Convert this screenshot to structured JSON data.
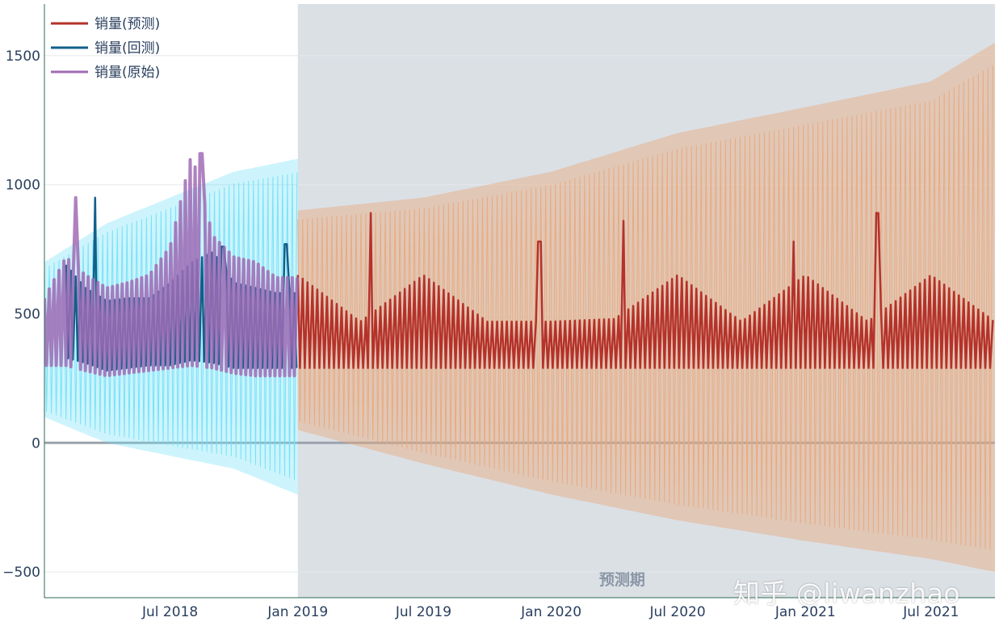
{
  "chart_data": {
    "type": "line",
    "title": "",
    "xlabel": "",
    "ylabel": "",
    "x_range": [
      "2018-01-01",
      "2021-10-01"
    ],
    "ylim": [
      -600,
      1700
    ],
    "y_ticks": [
      1500,
      1000,
      500,
      0,
      -500
    ],
    "y_tick_labels": [
      "1500",
      "1000",
      "500",
      "0",
      "−500"
    ],
    "x_ticks": [
      "2018-07-01",
      "2019-01-01",
      "2019-07-01",
      "2020-01-01",
      "2020-07-01",
      "2021-01-01",
      "2021-07-01"
    ],
    "x_tick_labels": [
      "Jul 2018",
      "Jan 2019",
      "Jul 2019",
      "Jan 2020",
      "Jul 2020",
      "Jan 2021",
      "Jul 2021"
    ],
    "grid": true,
    "legend_position": "top-left",
    "forecast_region": {
      "start": "2019-01-01",
      "end": "2021-10-01",
      "label": "预测期"
    },
    "series": [
      {
        "name": "销量(预测)",
        "color": "#b5322a",
        "x": [
          "2019-01",
          "2019-04",
          "2019-07",
          "2019-10",
          "2020-01",
          "2020-04",
          "2020-07",
          "2020-10",
          "2021-01",
          "2021-04",
          "2021-07",
          "2021-10"
        ],
        "y_low": [
          290,
          290,
          290,
          290,
          290,
          290,
          290,
          290,
          290,
          290,
          290,
          290
        ],
        "y_high": [
          650,
          470,
          650,
          470,
          470,
          480,
          650,
          470,
          650,
          470,
          650,
          470
        ],
        "spikes": [
          {
            "x": "2019-04",
            "y": 890
          },
          {
            "x": "2019-12",
            "y": 780
          },
          {
            "x": "2020-04",
            "y": 860
          },
          {
            "x": "2020-12",
            "y": 780
          },
          {
            "x": "2021-04",
            "y": 890
          }
        ]
      },
      {
        "name": "销量(回测)",
        "color": "#125f8a",
        "x": [
          "2018-02",
          "2018-03",
          "2018-04",
          "2018-05",
          "2018-06",
          "2018-07",
          "2018-08",
          "2018-09",
          "2018-10",
          "2018-11",
          "2018-12"
        ],
        "y_low": [
          330,
          310,
          280,
          290,
          300,
          300,
          320,
          310,
          290,
          290,
          290
        ],
        "y_high": [
          690,
          600,
          550,
          560,
          560,
          620,
          700,
          740,
          620,
          600,
          580
        ],
        "spikes": [
          {
            "x": "2018-03",
            "y": 950
          },
          {
            "x": "2018-09",
            "y": 760
          },
          {
            "x": "2018-12",
            "y": 770
          }
        ]
      },
      {
        "name": "销量(原始)",
        "color": "#a06bb5",
        "x": [
          "2018-01",
          "2018-02",
          "2018-03",
          "2018-04",
          "2018-05",
          "2018-06",
          "2018-07",
          "2018-08",
          "2018-09",
          "2018-10",
          "2018-11",
          "2018-12"
        ],
        "y_low": [
          300,
          300,
          280,
          260,
          270,
          280,
          290,
          300,
          290,
          270,
          260,
          260
        ],
        "y_high": [
          560,
          720,
          650,
          600,
          620,
          650,
          760,
          1120,
          800,
          720,
          700,
          640
        ],
        "spikes": [
          {
            "x": "2018-02",
            "y": 950
          },
          {
            "x": "2018-08",
            "y": 1120
          }
        ]
      }
    ],
    "uncertainty_bands": [
      {
        "color": "#6fe0f7",
        "x": [
          "2018-01",
          "2018-04",
          "2018-07",
          "2018-10",
          "2019-01"
        ],
        "lower": [
          100,
          0,
          -50,
          -100,
          -200
        ],
        "upper": [
          700,
          850,
          950,
          1050,
          1100
        ]
      },
      {
        "color": "#e8a87c",
        "x": [
          "2019-01",
          "2019-07",
          "2020-01",
          "2020-07",
          "2021-01",
          "2021-07",
          "2021-10"
        ],
        "lower": [
          50,
          -80,
          -200,
          -300,
          -380,
          -450,
          -500
        ],
        "upper": [
          900,
          950,
          1050,
          1200,
          1300,
          1400,
          1550
        ]
      }
    ]
  },
  "watermark": "知乎 @liwanzhao"
}
